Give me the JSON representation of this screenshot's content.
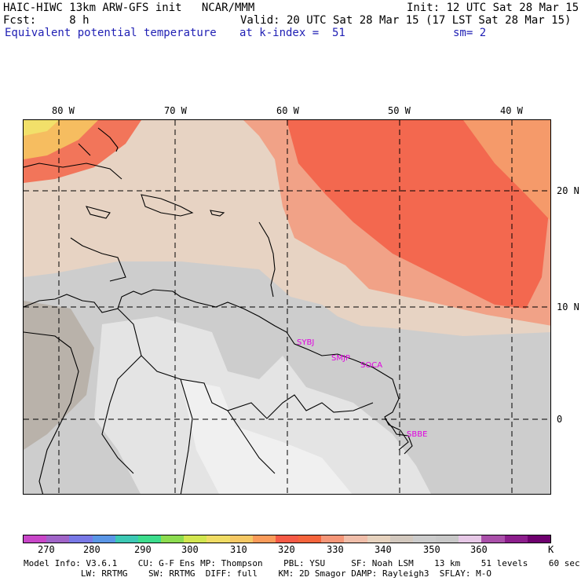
{
  "header": {
    "line1_left": "HAIC-HIWC 13km ARW-GFS init   NCAR/MMM",
    "line1_right": "Init: 12 UTC Sat 28 Mar 15",
    "line2_left": "Fcst:     8 h",
    "line2_right": "Valid: 20 UTC Sat 28 Mar 15 (17 LST Sat 28 Mar 15)",
    "line3_left": "Equivalent potential temperature",
    "line3_mid": "at k-index =  51",
    "line3_right": "sm= 2"
  },
  "axes": {
    "lon_labels": [
      "80 W",
      "70 W",
      "60 W",
      "50 W",
      "40 W"
    ],
    "lat_labels": [
      "20 N",
      "10 N",
      "0"
    ]
  },
  "stations": [
    "SYBJ",
    "SMJP",
    "SOCA",
    "SBBE"
  ],
  "colorbar": {
    "unit": "K",
    "tick_labels": [
      "270",
      "280",
      "290",
      "300",
      "310",
      "320",
      "330",
      "340",
      "350",
      "360"
    ],
    "colors": [
      "#c846c8",
      "#a064c8",
      "#7878e6",
      "#5a96e6",
      "#3cc8b4",
      "#3cdc8c",
      "#8cdc50",
      "#d2e650",
      "#f0dc64",
      "#f5c864",
      "#fa9b5a",
      "#f55a46",
      "#f5643c",
      "#f59678",
      "#f0beaa",
      "#e6d2be",
      "#d2c8be",
      "#cccccc",
      "#c8c8c8",
      "#e6c8e6",
      "#aa50aa",
      "#8c1e8c",
      "#6e006e"
    ]
  },
  "footer": {
    "line1": "Model Info: V3.6.1    CU: G-F Ens MP: Thompson    PBL: YSU     SF: Noah LSM    13 km    51 levels    60 sec",
    "line2": "           LW: RRTMG    SW: RRTMG  DIFF: full    KM: 2D Smagor DAMP: Rayleigh3  SFLAY: M-O"
  }
}
